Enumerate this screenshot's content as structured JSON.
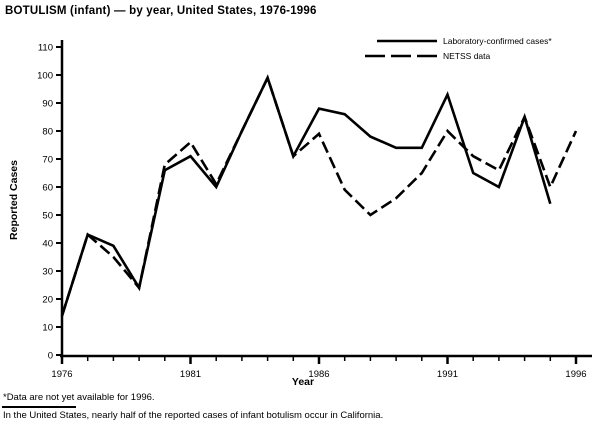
{
  "title": "BOTULISM (infant) — by year, United States, 1976-1996",
  "footnotes": {
    "note1": "*Data are not yet available for 1996.",
    "note2": "In the United States, nearly half of the reported cases of infant botulism occur in California."
  },
  "colors": {
    "ink": "#000000",
    "background": "#ffffff"
  },
  "chart_data": {
    "type": "line",
    "title": "BOTULISM (infant) — by year, United States, 1976-1996",
    "xlabel": "Year",
    "ylabel": "Reported Cases",
    "ylim": [
      0,
      110
    ],
    "y_ticks": [
      0,
      10,
      20,
      30,
      40,
      50,
      60,
      70,
      80,
      90,
      100,
      110
    ],
    "x_range": [
      1976,
      1996
    ],
    "x_tick_labels": [
      1976,
      1981,
      1986,
      1991,
      1996
    ],
    "grid": false,
    "legend_position": "top-right-inside",
    "series": [
      {
        "name": "Laboratory-confirmed cases*",
        "style": "solid",
        "x": [
          1976,
          1977,
          1978,
          1979,
          1980,
          1981,
          1982,
          1983,
          1984,
          1985,
          1986,
          1987,
          1988,
          1989,
          1990,
          1991,
          1992,
          1993,
          1994,
          1995
        ],
        "values": [
          14,
          43,
          39,
          24,
          66,
          71,
          60,
          80,
          99,
          71,
          88,
          86,
          78,
          74,
          74,
          93,
          65,
          60,
          85,
          54
        ]
      },
      {
        "name": "NETSS data",
        "style": "dashed",
        "x": [
          1976,
          1977,
          1978,
          1979,
          1980,
          1981,
          1982,
          1983,
          1984,
          1985,
          1986,
          1987,
          1988,
          1989,
          1990,
          1991,
          1992,
          1993,
          1994,
          1995,
          1996
        ],
        "values": [
          14,
          43,
          35,
          24,
          68,
          76,
          61,
          80,
          99,
          71,
          79,
          59,
          50,
          56,
          65,
          80,
          71,
          66,
          85,
          60,
          80
        ]
      }
    ],
    "footnotes": [
      "*Data are not yet available for 1996.",
      "In the United States, nearly half of the reported cases of infant botulism occur in California."
    ]
  }
}
